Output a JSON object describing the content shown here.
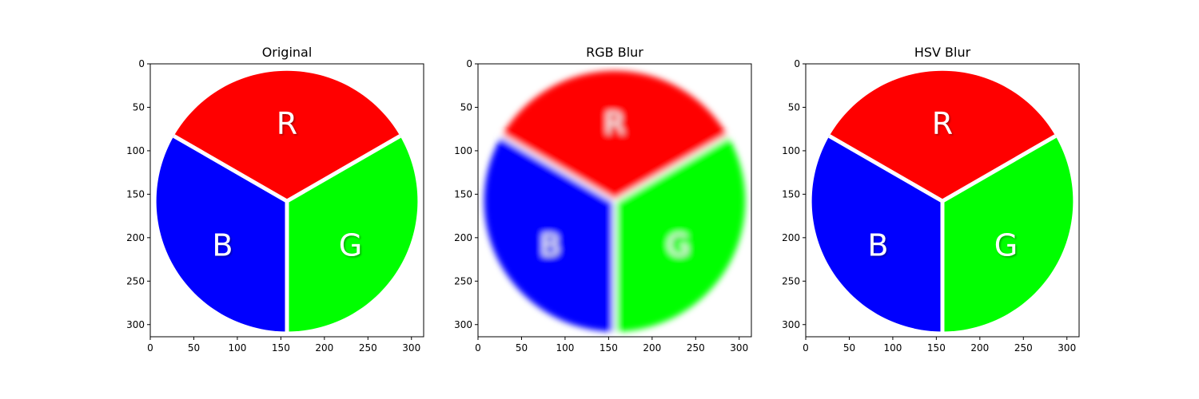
{
  "figure": {
    "background": "#ffffff"
  },
  "colors": {
    "red": "#ff0000",
    "green": "#00ff00",
    "blue": "#0000ff",
    "separator": "#ffffff",
    "axis": "#000000"
  },
  "chart_data": [
    {
      "type": "image",
      "title": "Original",
      "blur": false,
      "xlim": [
        0,
        314
      ],
      "ylim": [
        314,
        0
      ],
      "x_ticks": [
        0,
        50,
        100,
        150,
        200,
        250,
        300
      ],
      "y_ticks": [
        0,
        50,
        100,
        150,
        200,
        250,
        300
      ],
      "labels": [
        "R",
        "G",
        "B"
      ]
    },
    {
      "type": "image",
      "title": "RGB Blur",
      "blur": true,
      "xlim": [
        0,
        314
      ],
      "ylim": [
        314,
        0
      ],
      "x_ticks": [
        0,
        50,
        100,
        150,
        200,
        250,
        300
      ],
      "y_ticks": [
        0,
        50,
        100,
        150,
        200,
        250,
        300
      ],
      "labels": [
        "R",
        "G",
        "B"
      ]
    },
    {
      "type": "image",
      "title": "HSV Blur",
      "blur": false,
      "xlim": [
        0,
        314
      ],
      "ylim": [
        314,
        0
      ],
      "x_ticks": [
        0,
        50,
        100,
        150,
        200,
        250,
        300
      ],
      "y_ticks": [
        0,
        50,
        100,
        150,
        200,
        250,
        300
      ],
      "labels": [
        "R",
        "G",
        "B"
      ]
    }
  ]
}
